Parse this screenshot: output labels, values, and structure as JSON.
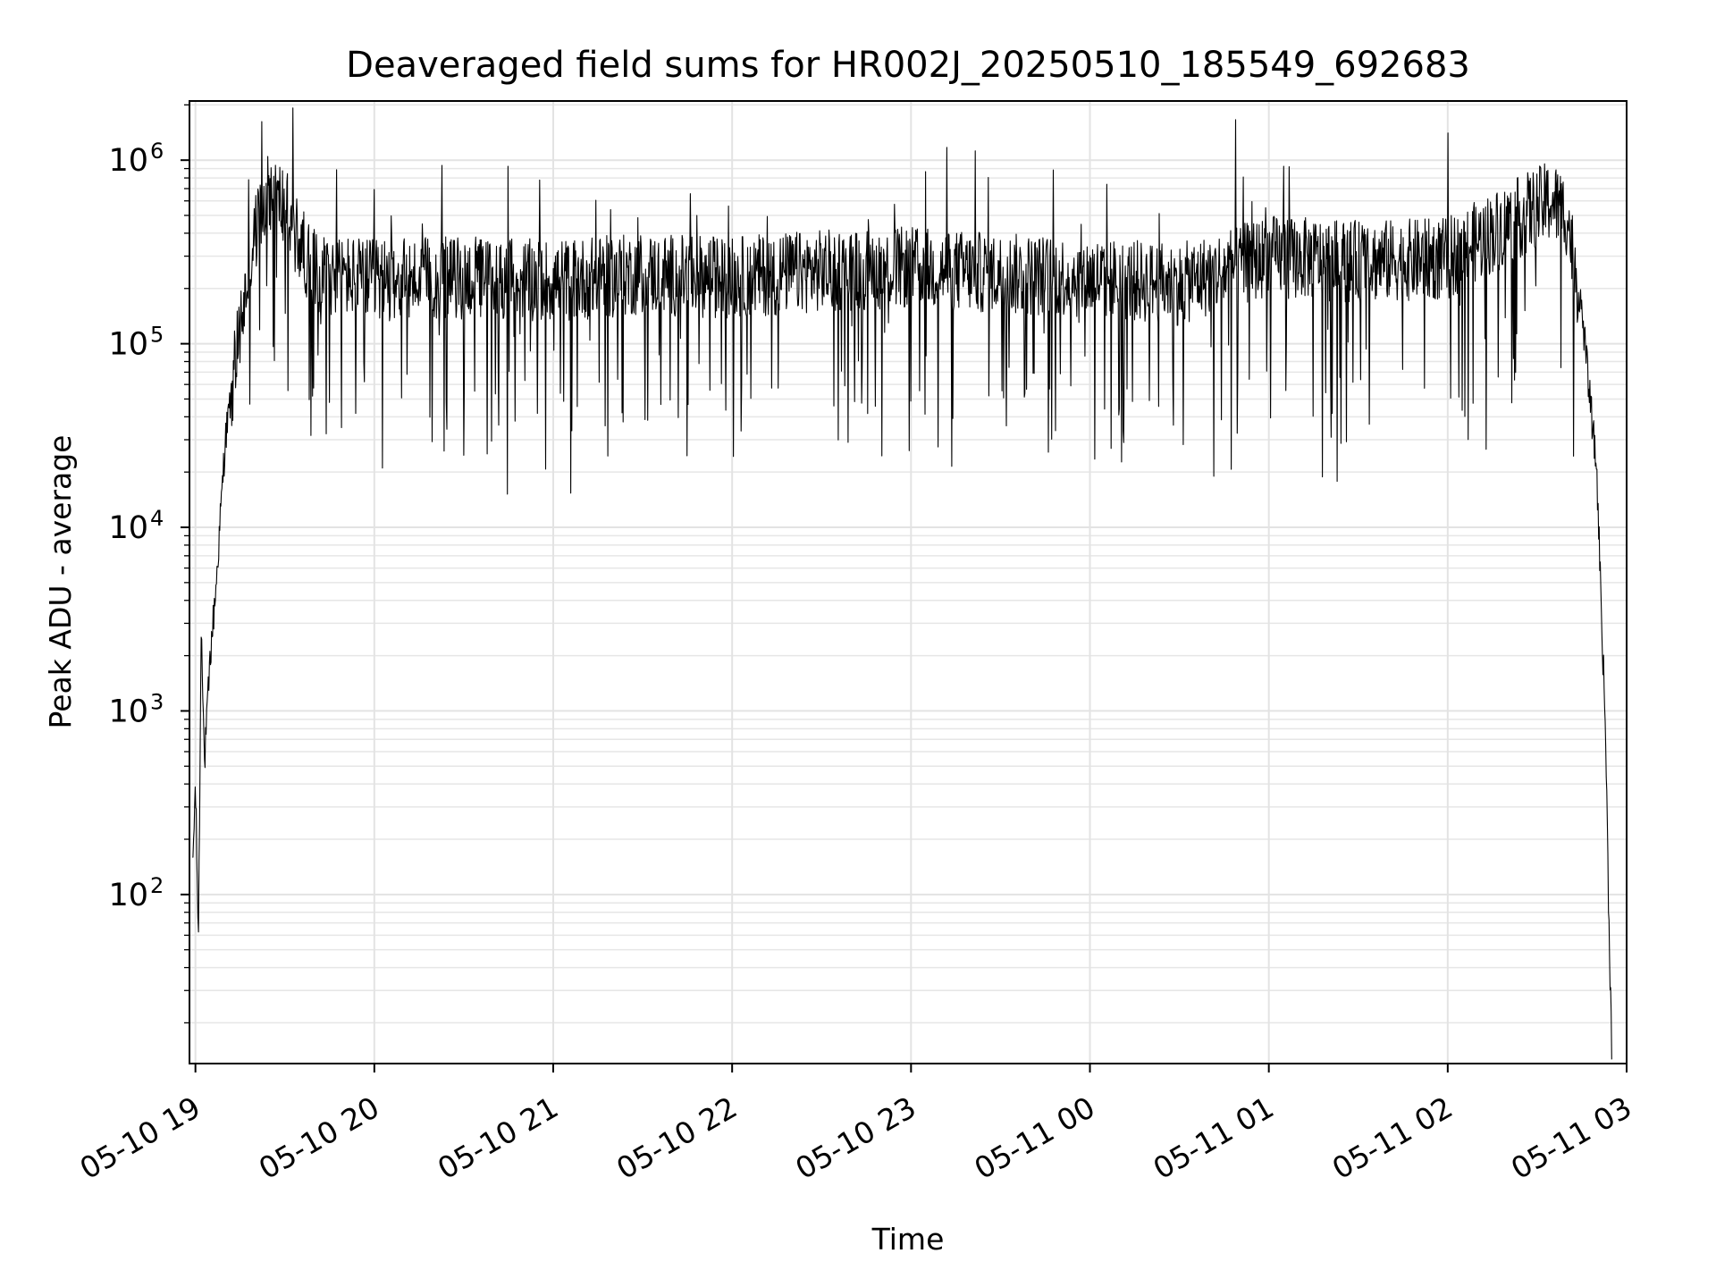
{
  "chart_data": {
    "type": "line",
    "title": "Deaveraged field sums for HR002J_20250510_185549_692683",
    "xlabel": "Time",
    "ylabel": "Peak ADU - average",
    "x_ticks": [
      "05-10 19",
      "05-10 20",
      "05-10 21",
      "05-10 22",
      "05-10 23",
      "05-11 00",
      "05-11 01",
      "05-11 02",
      "05-11 03"
    ],
    "y_ticks": [
      {
        "base": "10",
        "exp": "2",
        "value": 100
      },
      {
        "base": "10",
        "exp": "3",
        "value": 1000
      },
      {
        "base": "10",
        "exp": "4",
        "value": 10000
      },
      {
        "base": "10",
        "exp": "5",
        "value": 100000
      },
      {
        "base": "10",
        "exp": "6",
        "value": 1000000
      }
    ],
    "x_range": [
      "2025-05-10 18:58",
      "2025-05-11 03:00"
    ],
    "y_scale": "log",
    "y_range": [
      12,
      2100000
    ],
    "grid": true,
    "line_color": "#000000",
    "series": [
      {
        "x": [
          "2025-05-10 18:59",
          "2025-05-10 19:00",
          "2025-05-10 19:01",
          "2025-05-10 19:02",
          "2025-05-10 19:03",
          "2025-05-10 19:05",
          "2025-05-10 19:07",
          "2025-05-10 19:10",
          "2025-05-10 19:15",
          "2025-05-10 19:20",
          "2025-05-10 19:25",
          "2025-05-10 19:30",
          "2025-05-10 19:35",
          "2025-05-10 19:40",
          "2025-05-10 20:00",
          "2025-05-10 20:30",
          "2025-05-10 21:00",
          "2025-05-10 21:30",
          "2025-05-10 22:00",
          "2025-05-10 22:30",
          "2025-05-10 23:00",
          "2025-05-10 23:30",
          "2025-05-11 00:00",
          "2025-05-11 00:30",
          "2025-05-11 01:00",
          "2025-05-11 01:30",
          "2025-05-11 02:00",
          "2025-05-11 02:20",
          "2025-05-11 02:30",
          "2025-05-11 02:35",
          "2025-05-11 02:40",
          "2025-05-11 02:45",
          "2025-05-11 02:50",
          "2025-05-11 02:53",
          "2025-05-11 02:54",
          "2025-05-11 02:55"
        ],
        "y": [
          130,
          400,
          60,
          3500,
          500,
          2000,
          5000,
          30000,
          120000,
          400000,
          700000,
          550000,
          350000,
          250000,
          220000,
          230000,
          220000,
          240000,
          230000,
          250000,
          260000,
          240000,
          230000,
          210000,
          300000,
          280000,
          290000,
          450000,
          550000,
          600000,
          500000,
          150000,
          20000,
          700,
          80,
          15
        ]
      }
    ]
  }
}
